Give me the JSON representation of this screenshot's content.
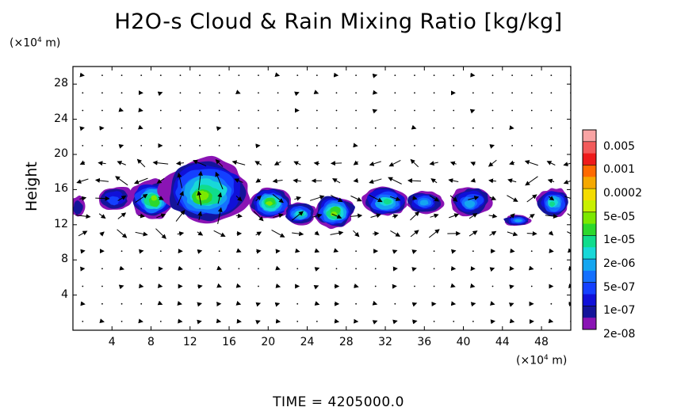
{
  "chart_data": {
    "type": "heatmap",
    "title": "H2O-s Cloud & Rain Mixing Ratio [kg/kg]",
    "ylabel": "Height",
    "y_unit_prefix": "(×10",
    "y_unit_exp": "4",
    "y_unit_suffix": " m)",
    "x_unit_prefix": "(×10",
    "x_unit_exp": "4",
    "x_unit_suffix": " m)",
    "time_label": "TIME = 4205000.0",
    "xlim": [
      0,
      51
    ],
    "ylim": [
      0,
      30
    ],
    "x_ticks": [
      4,
      8,
      12,
      16,
      20,
      24,
      28,
      32,
      36,
      40,
      44,
      48
    ],
    "y_ticks": [
      4,
      8,
      12,
      16,
      20,
      24,
      28
    ],
    "colorbar": {
      "labels": [
        "0.005",
        "0.001",
        "0.0002",
        "5e-05",
        "1e-05",
        "2e-06",
        "5e-07",
        "1e-07",
        "2e-08"
      ],
      "colors": [
        "#f9a4a4",
        "#f25a5a",
        "#ee1a1a",
        "#ff6a00",
        "#f5a800",
        "#f4dc00",
        "#c8f000",
        "#7ce800",
        "#2cd82c",
        "#10dc8c",
        "#18d8d8",
        "#14a6f0",
        "#1470ff",
        "#1440ff",
        "#1010d8",
        "#14149a",
        "#8a14b4"
      ]
    },
    "cloud_regions": [
      {
        "x_range": [
          -0.3,
          1.4
        ],
        "y_range": [
          12.8,
          15.4
        ],
        "max_level": "1e-07"
      },
      {
        "x_range": [
          2.4,
          6.2
        ],
        "y_range": [
          13.5,
          16.5
        ],
        "max_level": "5e-07"
      },
      {
        "x_range": [
          5.8,
          10.5
        ],
        "y_range": [
          12.6,
          17.2
        ],
        "max_level": "5e-05"
      },
      {
        "x_range": [
          9.0,
          18.2
        ],
        "y_range": [
          12.0,
          19.5
        ],
        "max_level": "5e-05"
      },
      {
        "x_range": [
          18.0,
          22.5
        ],
        "y_range": [
          12.6,
          16.4
        ],
        "max_level": "5e-05"
      },
      {
        "x_range": [
          21.5,
          25.0
        ],
        "y_range": [
          12.0,
          14.6
        ],
        "max_level": "1e-05"
      },
      {
        "x_range": [
          24.5,
          29.0
        ],
        "y_range": [
          11.5,
          15.5
        ],
        "max_level": "5e-05"
      },
      {
        "x_range": [
          29.5,
          34.5
        ],
        "y_range": [
          12.8,
          16.5
        ],
        "max_level": "1e-05"
      },
      {
        "x_range": [
          34.0,
          38.0
        ],
        "y_range": [
          13.2,
          15.9
        ],
        "max_level": "2e-06"
      },
      {
        "x_range": [
          38.5,
          43.0
        ],
        "y_range": [
          12.8,
          16.5
        ],
        "max_level": "2e-06"
      },
      {
        "x_range": [
          44.0,
          47.0
        ],
        "y_range": [
          11.8,
          13.2
        ],
        "max_level": "2e-06"
      },
      {
        "x_range": [
          47.5,
          51.0
        ],
        "y_range": [
          12.8,
          16.2
        ],
        "max_level": "1e-05"
      }
    ]
  }
}
